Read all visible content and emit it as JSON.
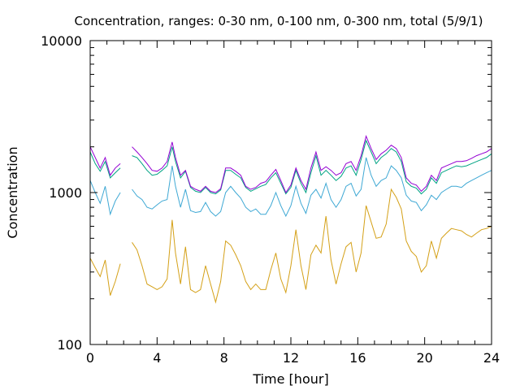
{
  "chart_data": {
    "type": "line",
    "title": "Concentration, ranges: 0-30 nm, 0-100 nm, 0-300 nm, total (5/9/1)",
    "xlabel": "Time [hour]",
    "ylabel": "Concentration",
    "xlim": [
      0,
      24
    ],
    "ylim": [
      100,
      10000
    ],
    "yscale": "log",
    "grid": false,
    "legend": "none",
    "x_ticks": [
      0,
      4,
      8,
      12,
      16,
      20,
      24
    ],
    "x_tick_labels": [
      "0",
      "4",
      "8",
      "12",
      "16",
      "20",
      "24"
    ],
    "y_ticks": [
      100,
      1000,
      10000
    ],
    "y_tick_labels": [
      "100",
      "1000",
      "10000"
    ],
    "x": [
      0,
      0.3,
      0.6,
      0.9,
      1.2,
      1.5,
      1.8,
      2.2,
      2.5,
      2.8,
      3.1,
      3.4,
      3.7,
      4.0,
      4.3,
      4.6,
      4.9,
      5.1,
      5.4,
      5.7,
      6.0,
      6.3,
      6.6,
      6.9,
      7.2,
      7.5,
      7.8,
      8.1,
      8.4,
      8.7,
      9.0,
      9.3,
      9.6,
      9.9,
      10.2,
      10.5,
      10.8,
      11.1,
      11.4,
      11.7,
      12.0,
      12.3,
      12.6,
      12.9,
      13.2,
      13.5,
      13.8,
      14.1,
      14.4,
      14.7,
      15.0,
      15.3,
      15.6,
      15.9,
      16.2,
      16.5,
      16.8,
      17.1,
      17.4,
      17.7,
      18.0,
      18.3,
      18.6,
      18.9,
      19.2,
      19.5,
      19.8,
      20.1,
      20.4,
      20.7,
      21.0,
      21.3,
      21.6,
      21.9,
      22.2,
      22.5,
      22.8,
      23.1,
      23.4,
      23.7,
      24.0
    ],
    "series": [
      {
        "color": "#d4a017",
        "values": [
          370,
          320,
          280,
          360,
          210,
          260,
          340,
          null,
          470,
          420,
          330,
          250,
          240,
          230,
          240,
          270,
          660,
          400,
          250,
          440,
          230,
          220,
          230,
          330,
          250,
          190,
          260,
          480,
          450,
          390,
          330,
          260,
          230,
          250,
          230,
          230,
          310,
          400,
          270,
          220,
          330,
          570,
          330,
          230,
          390,
          450,
          400,
          700,
          360,
          250,
          340,
          440,
          470,
          300,
          400,
          820,
          640,
          500,
          510,
          620,
          1050,
          930,
          780,
          480,
          410,
          380,
          300,
          330,
          480,
          370,
          500,
          540,
          580,
          570,
          560,
          530,
          510,
          540,
          570,
          580,
          600
        ]
      },
      {
        "color": "#3ea8d4",
        "values": [
          1200,
          1000,
          850,
          1100,
          720,
          880,
          1000,
          null,
          1050,
          950,
          900,
          800,
          780,
          830,
          880,
          900,
          1500,
          1100,
          800,
          1050,
          760,
          740,
          750,
          860,
          750,
          700,
          750,
          1000,
          1100,
          1000,
          920,
          800,
          750,
          780,
          720,
          720,
          820,
          1000,
          820,
          700,
          820,
          1100,
          850,
          730,
          960,
          1050,
          920,
          1150,
          900,
          800,
          900,
          1100,
          1150,
          950,
          1050,
          1700,
          1300,
          1100,
          1200,
          1250,
          1500,
          1400,
          1250,
          960,
          880,
          860,
          760,
          830,
          960,
          900,
          1000,
          1050,
          1100,
          1100,
          1080,
          1150,
          1200,
          1250,
          1300,
          1350,
          1400
        ]
      },
      {
        "color": "#00a383",
        "values": [
          1850,
          1550,
          1380,
          1600,
          1250,
          1350,
          1450,
          null,
          1750,
          1700,
          1550,
          1400,
          1300,
          1320,
          1400,
          1500,
          2000,
          1600,
          1250,
          1380,
          1080,
          1020,
          1000,
          1080,
          1000,
          980,
          1040,
          1400,
          1400,
          1320,
          1250,
          1080,
          1020,
          1060,
          1100,
          1130,
          1250,
          1350,
          1150,
          980,
          1080,
          1400,
          1150,
          1000,
          1350,
          1750,
          1300,
          1400,
          1300,
          1200,
          1280,
          1450,
          1500,
          1300,
          1650,
          2200,
          1850,
          1550,
          1700,
          1800,
          1950,
          1850,
          1600,
          1180,
          1100,
          1070,
          980,
          1050,
          1250,
          1150,
          1350,
          1400,
          1450,
          1500,
          1480,
          1500,
          1550,
          1600,
          1650,
          1700,
          1800
        ]
      },
      {
        "color": "#9400d3",
        "values": [
          2000,
          1700,
          1450,
          1700,
          1300,
          1450,
          1550,
          null,
          2000,
          1850,
          1700,
          1550,
          1400,
          1380,
          1450,
          1600,
          2150,
          1700,
          1300,
          1400,
          1100,
          1050,
          1020,
          1100,
          1020,
          1000,
          1060,
          1450,
          1450,
          1380,
          1300,
          1100,
          1050,
          1080,
          1150,
          1180,
          1300,
          1420,
          1200,
          1000,
          1120,
          1450,
          1200,
          1050,
          1450,
          1850,
          1400,
          1480,
          1400,
          1300,
          1350,
          1550,
          1600,
          1400,
          1750,
          2350,
          1950,
          1650,
          1800,
          1900,
          2050,
          1950,
          1700,
          1250,
          1150,
          1120,
          1020,
          1100,
          1300,
          1200,
          1450,
          1500,
          1550,
          1600,
          1600,
          1620,
          1680,
          1750,
          1800,
          1850,
          1950
        ]
      }
    ]
  }
}
